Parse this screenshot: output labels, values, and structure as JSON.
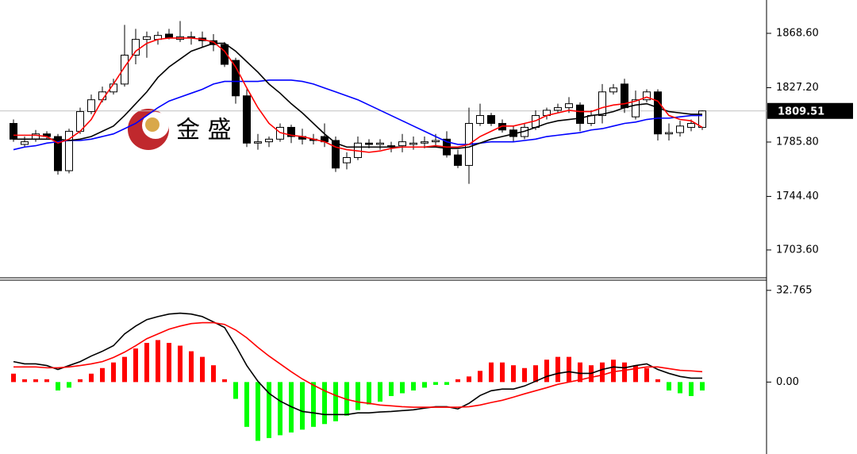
{
  "chart_data": [
    {
      "type": "candlestick",
      "watermark": "金 盛",
      "ylim": [
        1682.4,
        1894.0
      ],
      "yticks": [
        {
          "value": 1703.6,
          "label": "1703.60"
        },
        {
          "value": 1744.4,
          "label": "1744.40"
        },
        {
          "value": 1785.8,
          "label": "1785.80"
        },
        {
          "value": 1827.2,
          "label": "1827.20"
        },
        {
          "value": 1868.6,
          "label": "1868.60"
        }
      ],
      "last_price": 1809.51,
      "up_color": "#ffffff",
      "down_color": "#000000",
      "open": [
        1800,
        1784,
        1788,
        1792,
        1790,
        1764,
        1794,
        1809,
        1818,
        1824,
        1830,
        1852,
        1864,
        1864,
        1868,
        1864,
        1866,
        1865,
        1863,
        1860,
        1848,
        1821,
        1785,
        1786,
        1788,
        1797,
        1790,
        1788,
        1790,
        1787,
        1770,
        1774,
        1785,
        1784,
        1783,
        1783,
        1784,
        1785,
        1786,
        1788,
        1776,
        1768,
        1800,
        1806,
        1800,
        1795,
        1790,
        1797,
        1806,
        1810,
        1812,
        1814,
        1800,
        1806,
        1824,
        1830,
        1805,
        1818,
        1824,
        1792,
        1793,
        1797,
        1797
      ],
      "high": [
        1803,
        1790,
        1795,
        1794,
        1792,
        1796,
        1812,
        1822,
        1828,
        1834,
        1875,
        1872,
        1870,
        1870,
        1872,
        1878,
        1870,
        1870,
        1868,
        1862,
        1850,
        1826,
        1792,
        1790,
        1800,
        1799,
        1796,
        1792,
        1800,
        1790,
        1778,
        1790,
        1788,
        1788,
        1786,
        1792,
        1790,
        1790,
        1792,
        1794,
        1780,
        1812,
        1815,
        1808,
        1803,
        1798,
        1800,
        1810,
        1812,
        1815,
        1820,
        1816,
        1810,
        1830,
        1830,
        1834,
        1825,
        1826,
        1826,
        1800,
        1802,
        1803,
        1810
      ],
      "low": [
        1786,
        1782,
        1786,
        1788,
        1761,
        1762,
        1792,
        1807,
        1816,
        1822,
        1828,
        1845,
        1850,
        1860,
        1864,
        1862,
        1860,
        1858,
        1855,
        1843,
        1815,
        1782,
        1780,
        1782,
        1786,
        1785,
        1784,
        1784,
        1782,
        1763,
        1765,
        1772,
        1781,
        1780,
        1778,
        1778,
        1780,
        1781,
        1782,
        1774,
        1766,
        1754,
        1798,
        1798,
        1793,
        1786,
        1788,
        1795,
        1803,
        1808,
        1808,
        1794,
        1798,
        1800,
        1822,
        1808,
        1803,
        1816,
        1787,
        1787,
        1790,
        1794,
        1795
      ],
      "close": [
        1788,
        1786,
        1792,
        1790,
        1764,
        1794,
        1809,
        1818,
        1824,
        1830,
        1852,
        1864,
        1866,
        1867,
        1865,
        1866,
        1865,
        1863,
        1860,
        1845,
        1821,
        1785,
        1786,
        1788,
        1797,
        1790,
        1788,
        1787,
        1786,
        1766,
        1774,
        1785,
        1784,
        1785,
        1782,
        1786,
        1785,
        1786,
        1787,
        1776,
        1768,
        1800,
        1806,
        1800,
        1795,
        1790,
        1797,
        1806,
        1810,
        1812,
        1815,
        1800,
        1806,
        1824,
        1827,
        1812,
        1818,
        1824,
        1792,
        1793,
        1798,
        1800,
        1809.51
      ],
      "series": [
        {
          "color": "#0000ff",
          "values": [
            1780,
            1782,
            1783,
            1785,
            1786,
            1787,
            1787,
            1788,
            1790,
            1792,
            1796,
            1800,
            1806,
            1812,
            1817,
            1820,
            1823,
            1826,
            1830,
            1832,
            1832,
            1832,
            1832,
            1833,
            1833,
            1833,
            1832,
            1830,
            1827,
            1824,
            1821,
            1818,
            1814,
            1810,
            1806,
            1802,
            1798,
            1794,
            1790,
            1786,
            1784,
            1784,
            1785,
            1786,
            1786,
            1786,
            1787,
            1788,
            1790,
            1791,
            1792,
            1793,
            1795,
            1796,
            1798,
            1800,
            1801,
            1803,
            1804,
            1804,
            1805,
            1806,
            1806
          ]
        },
        {
          "color": "#000000",
          "values": [
            1788,
            1788,
            1788,
            1788,
            1788,
            1787,
            1788,
            1790,
            1794,
            1798,
            1806,
            1815,
            1824,
            1835,
            1843,
            1849,
            1855,
            1858,
            1861,
            1861,
            1855,
            1847,
            1839,
            1830,
            1823,
            1815,
            1808,
            1800,
            1792,
            1785,
            1782,
            1782,
            1782,
            1782,
            1782,
            1782,
            1782,
            1782,
            1782,
            1781,
            1781,
            1782,
            1785,
            1788,
            1790,
            1792,
            1794,
            1797,
            1800,
            1802,
            1803,
            1804,
            1806,
            1807,
            1809,
            1812,
            1814,
            1815,
            1812,
            1809,
            1808,
            1807,
            1807
          ]
        },
        {
          "color": "#ff0000",
          "values": [
            1791,
            1791,
            1791,
            1790,
            1785,
            1788,
            1794,
            1803,
            1818,
            1830,
            1843,
            1855,
            1861,
            1864,
            1865,
            1865,
            1865,
            1864,
            1862,
            1855,
            1843,
            1827,
            1812,
            1800,
            1793,
            1791,
            1790,
            1788,
            1786,
            1782,
            1780,
            1779,
            1778,
            1779,
            1781,
            1782,
            1782,
            1782,
            1783,
            1782,
            1782,
            1784,
            1790,
            1794,
            1798,
            1798,
            1800,
            1802,
            1806,
            1808,
            1810,
            1809,
            1809,
            1812,
            1814,
            1815,
            1817,
            1820,
            1817,
            1806,
            1803,
            1802,
            1797
          ]
        }
      ]
    },
    {
      "type": "macd",
      "ylim": [
        -25.7,
        36.4
      ],
      "yticks": [
        {
          "value": 0,
          "label": "0.00"
        },
        32.765
      ],
      "positive_color": "#ff0000",
      "negative_color": "#00ff00",
      "values": [
        3,
        1,
        1,
        1,
        -3,
        -2,
        1,
        3,
        5,
        7,
        9,
        12,
        14,
        15,
        14,
        13,
        11,
        9,
        6,
        1,
        -6,
        -16,
        -21,
        -20,
        -19,
        -18,
        -17,
        -16,
        -15,
        -14,
        -12,
        -10,
        -8,
        -7,
        -5,
        -4,
        -3,
        -2,
        -1,
        -1,
        1,
        2,
        4,
        7,
        7,
        6,
        5,
        6,
        8,
        9,
        9,
        7,
        6,
        7,
        8,
        7,
        6,
        5,
        1,
        -3,
        -4,
        -5,
        -3
      ],
      "series": [
        {
          "color": "#000000",
          "values": [
            7.3,
            6.5,
            6.5,
            5.9,
            4.5,
            5.9,
            7.3,
            9.3,
            11,
            13,
            17.2,
            20,
            22.3,
            23.4,
            24.3,
            24.6,
            24.3,
            23.4,
            21.5,
            19.5,
            13,
            5.9,
            0.3,
            -4,
            -6.8,
            -8.8,
            -10.5,
            -11,
            -11.6,
            -11.6,
            -11.6,
            -11,
            -11,
            -10.7,
            -10.5,
            -10.2,
            -9.9,
            -9.3,
            -8.8,
            -8.8,
            -9.6,
            -7.6,
            -4.8,
            -3.1,
            -2.5,
            -2.5,
            -1.4,
            0.3,
            2,
            3.1,
            3.7,
            3.1,
            3.1,
            4.5,
            5.4,
            5.1,
            5.9,
            6.5,
            4.5,
            3.1,
            2,
            1.4,
            1.4
          ]
        },
        {
          "color": "#ff0000",
          "values": [
            5.4,
            5.4,
            5.4,
            5.1,
            5.1,
            5.4,
            5.9,
            6.5,
            7.3,
            8.8,
            10.7,
            13,
            15.5,
            17.2,
            18.9,
            20,
            20.9,
            21.2,
            21.2,
            20.6,
            18.6,
            15.8,
            12.4,
            9.3,
            6.5,
            3.7,
            1.1,
            -1.1,
            -3.1,
            -4.8,
            -6.2,
            -7.1,
            -7.6,
            -8.2,
            -8.5,
            -8.8,
            -9,
            -9,
            -9,
            -9,
            -9,
            -8.8,
            -8.2,
            -7.3,
            -6.5,
            -5.4,
            -4.2,
            -3.1,
            -2,
            -0.8,
            0,
            0.8,
            1.7,
            2.5,
            3.7,
            4.2,
            4.8,
            5.4,
            5.4,
            4.8,
            4.2,
            4,
            3.7
          ]
        }
      ]
    }
  ]
}
